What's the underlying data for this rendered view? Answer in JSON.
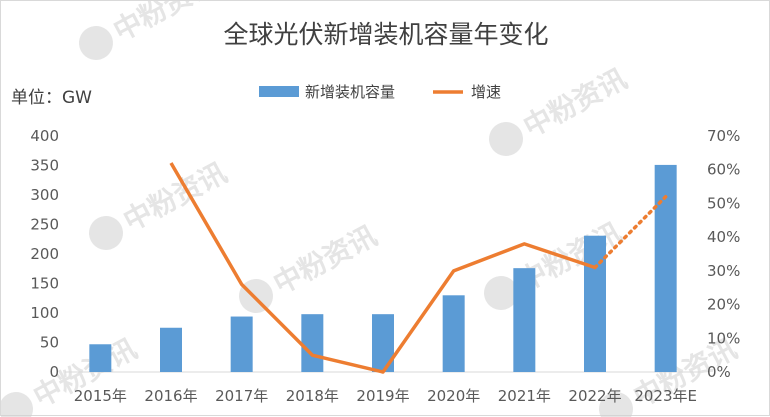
{
  "chart_data": {
    "type": "bar",
    "title": "全球光伏新增装机容量年变化",
    "unit_label": "单位：GW",
    "categories": [
      "2015年",
      "2016年",
      "2017年",
      "2018年",
      "2019年",
      "2020年",
      "2021年",
      "2022年",
      "2023年E"
    ],
    "series": [
      {
        "name": "新增装机容量",
        "type": "bar",
        "axis": "left",
        "color": "#5b9bd5",
        "values": [
          47,
          75,
          94,
          98,
          98,
          130,
          176,
          231,
          351
        ]
      },
      {
        "name": "增速",
        "type": "line",
        "axis": "right",
        "color": "#ed7d31",
        "values": [
          null,
          0.62,
          0.26,
          0.05,
          0.0,
          0.3,
          0.38,
          0.31,
          0.52
        ],
        "dotted_from_index": 7
      }
    ],
    "y_left": {
      "min": 0,
      "max": 400,
      "ticks": [
        0,
        50,
        100,
        150,
        200,
        250,
        300,
        350,
        400
      ]
    },
    "y_right": {
      "min": 0,
      "max": 0.7,
      "ticks": [
        "0%",
        "10%",
        "20%",
        "30%",
        "40%",
        "50%",
        "60%",
        "70%"
      ]
    },
    "legend_position": "top",
    "grid": false
  },
  "watermark": {
    "text": "中粉资讯"
  }
}
